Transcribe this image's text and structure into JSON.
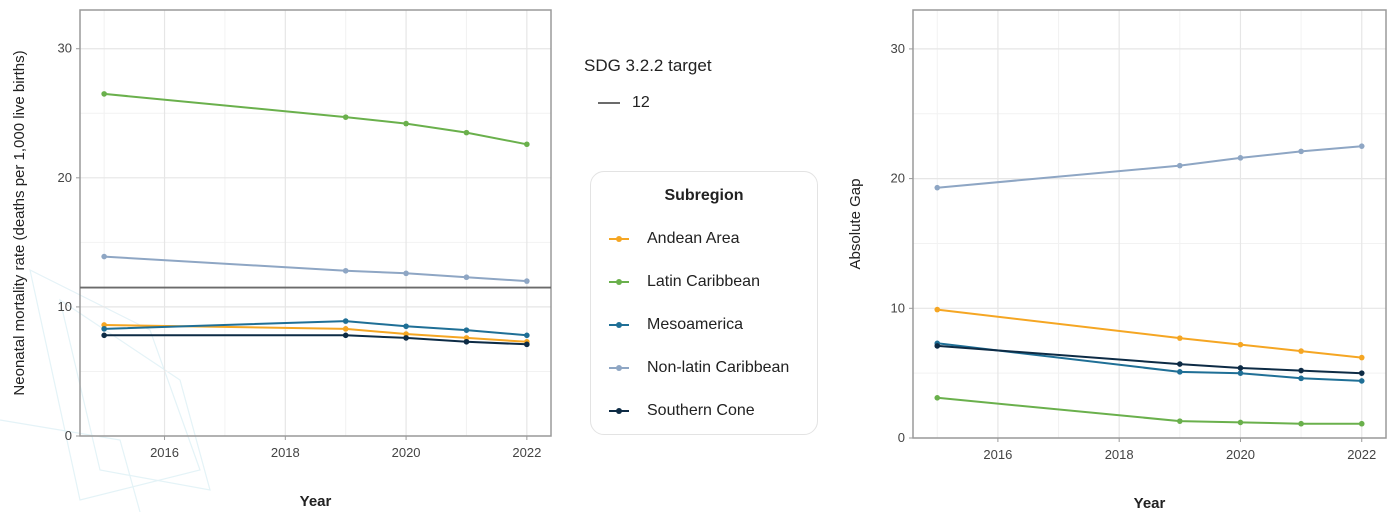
{
  "chart_data": [
    {
      "type": "line",
      "xlabel": "Year",
      "ylabel": "Neonatal mortality rate (deaths per 1,000 live births)",
      "xlim": [
        2014.6,
        2022.4
      ],
      "ylim": [
        0,
        33
      ],
      "x_ticks": [
        2016,
        2018,
        2020,
        2022
      ],
      "y_ticks": [
        0,
        10,
        20,
        30
      ],
      "grid": true,
      "reference_line": {
        "value": 11.5,
        "label": "12",
        "color": "#6b6b6b"
      },
      "series": [
        {
          "name": "Andean Area",
          "color": "#f5a623",
          "points": [
            [
              2015,
              8.6
            ],
            [
              2019,
              8.3
            ],
            [
              2020,
              7.9
            ],
            [
              2021,
              7.6
            ],
            [
              2022,
              7.3
            ]
          ]
        },
        {
          "name": "Latin Caribbean",
          "color": "#6ab04c",
          "points": [
            [
              2015,
              26.5
            ],
            [
              2019,
              24.7
            ],
            [
              2020,
              24.2
            ],
            [
              2021,
              23.5
            ],
            [
              2022,
              22.6
            ]
          ]
        },
        {
          "name": "Mesoamerica",
          "color": "#1f6f96",
          "points": [
            [
              2015,
              8.3
            ],
            [
              2019,
              8.9
            ],
            [
              2020,
              8.5
            ],
            [
              2021,
              8.2
            ],
            [
              2022,
              7.8
            ]
          ]
        },
        {
          "name": "Non-latin Caribbean",
          "color": "#8ea6c4",
          "points": [
            [
              2015,
              13.9
            ],
            [
              2019,
              12.8
            ],
            [
              2020,
              12.6
            ],
            [
              2021,
              12.3
            ],
            [
              2022,
              12.0
            ]
          ]
        },
        {
          "name": "Southern Cone",
          "color": "#0d2b45",
          "points": [
            [
              2015,
              7.8
            ],
            [
              2019,
              7.8
            ],
            [
              2020,
              7.6
            ],
            [
              2021,
              7.3
            ],
            [
              2022,
              7.1
            ]
          ]
        }
      ]
    },
    {
      "type": "line",
      "xlabel": "Year",
      "ylabel": "Absolute Gap",
      "xlim": [
        2014.6,
        2022.4
      ],
      "ylim": [
        0,
        33
      ],
      "x_ticks": [
        2016,
        2018,
        2020,
        2022
      ],
      "y_ticks": [
        0,
        10,
        20,
        30
      ],
      "grid": true,
      "series": [
        {
          "name": "Andean Area",
          "color": "#f5a623",
          "points": [
            [
              2015,
              9.9
            ],
            [
              2019,
              7.7
            ],
            [
              2020,
              7.2
            ],
            [
              2021,
              6.7
            ],
            [
              2022,
              6.2
            ]
          ]
        },
        {
          "name": "Latin Caribbean",
          "color": "#6ab04c",
          "points": [
            [
              2015,
              3.1
            ],
            [
              2019,
              1.3
            ],
            [
              2020,
              1.2
            ],
            [
              2021,
              1.1
            ],
            [
              2022,
              1.1
            ]
          ]
        },
        {
          "name": "Mesoamerica",
          "color": "#1f6f96",
          "points": [
            [
              2015,
              7.3
            ],
            [
              2019,
              5.1
            ],
            [
              2020,
              5.0
            ],
            [
              2021,
              4.6
            ],
            [
              2022,
              4.4
            ]
          ]
        },
        {
          "name": "Non-latin Caribbean",
          "color": "#8ea6c4",
          "points": [
            [
              2015,
              19.3
            ],
            [
              2019,
              21.0
            ],
            [
              2020,
              21.6
            ],
            [
              2021,
              22.1
            ],
            [
              2022,
              22.5
            ]
          ]
        },
        {
          "name": "Southern Cone",
          "color": "#0d2b45",
          "points": [
            [
              2015,
              7.1
            ],
            [
              2019,
              5.7
            ],
            [
              2020,
              5.4
            ],
            [
              2021,
              5.2
            ],
            [
              2022,
              5.0
            ]
          ]
        }
      ]
    }
  ],
  "legend_target": {
    "title": "SDG 3.2.2 target",
    "value_label": "12",
    "color": "#6b6b6b"
  },
  "legend_subregion": {
    "title": "Subregion",
    "items": [
      {
        "label": "Andean Area",
        "color": "#f5a623"
      },
      {
        "label": "Latin Caribbean",
        "color": "#6ab04c"
      },
      {
        "label": "Mesoamerica",
        "color": "#1f6f96"
      },
      {
        "label": "Non-latin Caribbean",
        "color": "#8ea6c4"
      },
      {
        "label": "Southern Cone",
        "color": "#0d2b45"
      }
    ]
  }
}
